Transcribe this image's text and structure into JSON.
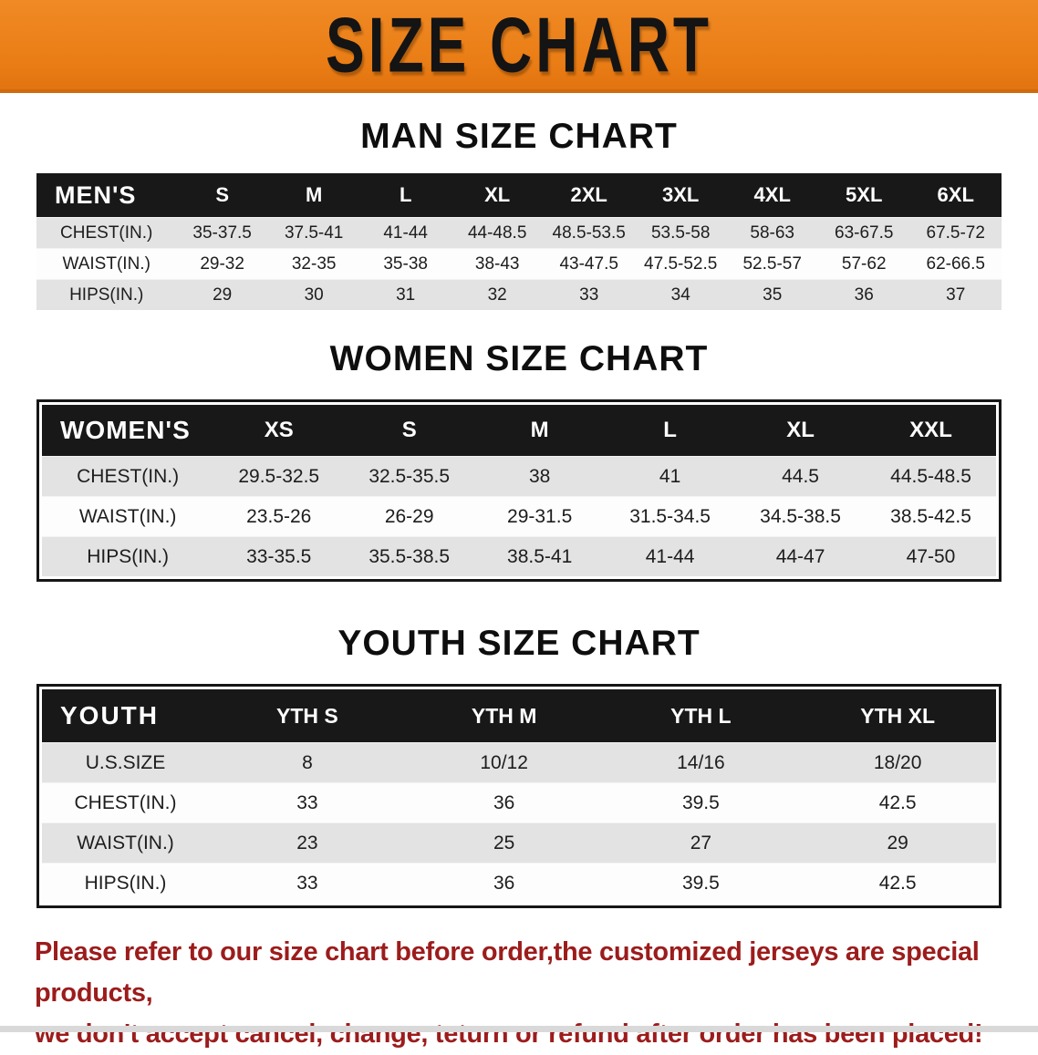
{
  "banner": {
    "title": "SIZE CHART"
  },
  "colors": {
    "banner_bg": "#EA7D15",
    "banner_edge": "#CF6A0D",
    "header_bar": "#181818",
    "header_text": "#FFFFFF",
    "row_gray": "#E3E3E3",
    "row_white": "#FDFDFD",
    "disclaimer_red": "#9C1C1C"
  },
  "sections": [
    {
      "id": "men",
      "title": "MAN SIZE CHART",
      "corner_label": "MEN'S",
      "columns": [
        "S",
        "M",
        "L",
        "XL",
        "2XL",
        "3XL",
        "4XL",
        "5XL",
        "6XL"
      ],
      "rows": [
        {
          "label": "CHEST(IN.)",
          "values": [
            "35-37.5",
            "37.5-41",
            "41-44",
            "44-48.5",
            "48.5-53.5",
            "53.5-58",
            "58-63",
            "63-67.5",
            "67.5-72"
          ]
        },
        {
          "label": "WAIST(IN.)",
          "values": [
            "29-32",
            "32-35",
            "35-38",
            "38-43",
            "43-47.5",
            "47.5-52.5",
            "52.5-57",
            "57-62",
            "62-66.5"
          ]
        },
        {
          "label": "HIPS(IN.)",
          "values": [
            "29",
            "30",
            "31",
            "32",
            "33",
            "34",
            "35",
            "36",
            "37"
          ]
        }
      ]
    },
    {
      "id": "women",
      "title": "WOMEN SIZE CHART",
      "corner_label": "WOMEN'S",
      "columns": [
        "XS",
        "S",
        "M",
        "L",
        "XL",
        "XXL"
      ],
      "rows": [
        {
          "label": "CHEST(IN.)",
          "values": [
            "29.5-32.5",
            "32.5-35.5",
            "38",
            "41",
            "44.5",
            "44.5-48.5"
          ]
        },
        {
          "label": "WAIST(IN.)",
          "values": [
            "23.5-26",
            "26-29",
            "29-31.5",
            "31.5-34.5",
            "34.5-38.5",
            "38.5-42.5"
          ]
        },
        {
          "label": "HIPS(IN.)",
          "values": [
            "33-35.5",
            "35.5-38.5",
            "38.5-41",
            "41-44",
            "44-47",
            "47-50"
          ]
        }
      ]
    },
    {
      "id": "youth",
      "title": "YOUTH SIZE CHART",
      "corner_label": "YOUTH",
      "columns": [
        "YTH S",
        "YTH M",
        "YTH L",
        "YTH XL"
      ],
      "rows": [
        {
          "label": "U.S.SIZE",
          "values": [
            "8",
            "10/12",
            "14/16",
            "18/20"
          ]
        },
        {
          "label": "CHEST(IN.)",
          "values": [
            "33",
            "36",
            "39.5",
            "42.5"
          ]
        },
        {
          "label": "WAIST(IN.)",
          "values": [
            "23",
            "25",
            "27",
            "29"
          ]
        },
        {
          "label": "HIPS(IN.)",
          "values": [
            "33",
            "36",
            "39.5",
            "42.5"
          ]
        }
      ]
    }
  ],
  "disclaimer": {
    "line1": "Please refer to our size chart before order,the customized jerseys are special products,",
    "line2": "we don't accept cancel, change, teturn or refund after order has been placed!"
  }
}
